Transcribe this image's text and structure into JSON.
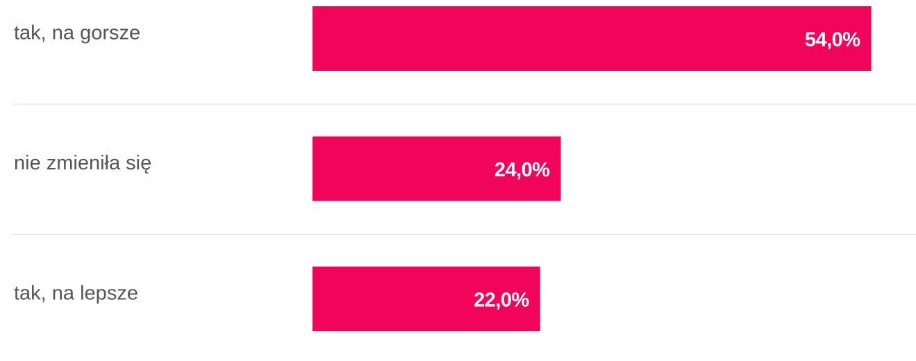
{
  "chart_data": {
    "type": "bar",
    "orientation": "horizontal",
    "categories": [
      "tak, na gorsze",
      "nie zmieniła się",
      "tak, na lepsze"
    ],
    "values": [
      54.0,
      24.0,
      22.0
    ],
    "value_labels": [
      "54,0%",
      "24,0%",
      "22,0%"
    ],
    "color": "#f0055a"
  }
}
